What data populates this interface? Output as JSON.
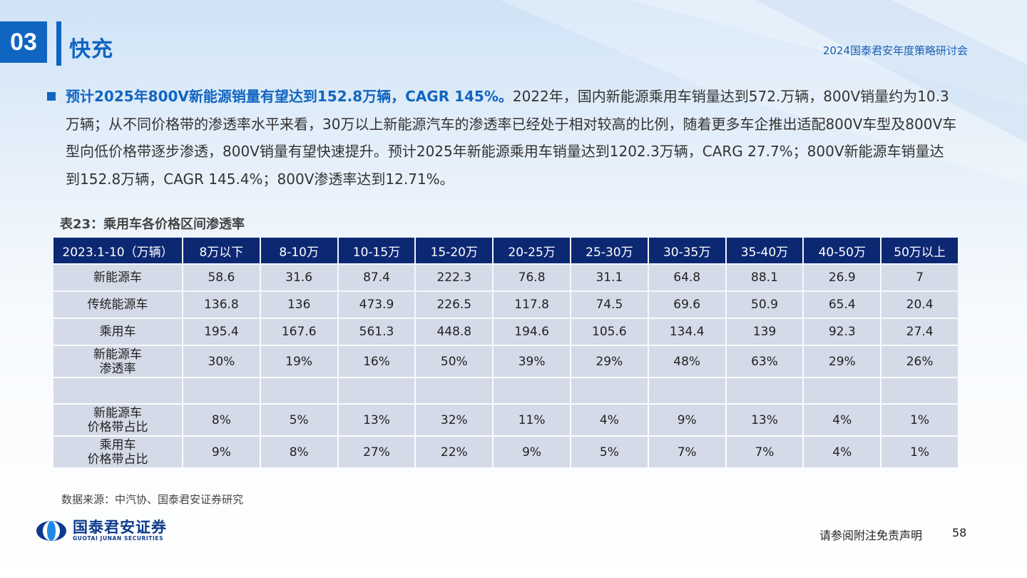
{
  "header": {
    "section_number": "03",
    "section_title": "快充",
    "event": "2024国泰君安年度策略研讨会"
  },
  "summary": {
    "highlight": "预计2025年800V新能源销量有望达到152.8万辆，CAGR 145%。",
    "body": "2022年，国内新能源乘用车销量达到572.万辆，800V销量约为10.3万辆；从不同价格带的渗透率水平来看，30万以上新能源汽车的渗透率已经处于相对较高的比例，随着更多车企推出适配800V车型及800V车型向低价格带逐步渗透，800V销量有望快速提升。预计2025年新能源乘用车销量达到1202.3万辆，CARG 27.7%；800V新能源车销量达到152.8万辆，CAGR 145.4%；800V渗透率达到12.71%。"
  },
  "table": {
    "caption": "表23：乘用车各价格区间渗透率",
    "headers": [
      "2023.1-10（万辆）",
      "8万以下",
      "8-10万",
      "10-15万",
      "15-20万",
      "20-25万",
      "25-30万",
      "30-35万",
      "35-40万",
      "40-50万",
      "50万以上"
    ],
    "rows": [
      {
        "label": "新能源车",
        "values": [
          "58.6",
          "31.6",
          "87.4",
          "222.3",
          "76.8",
          "31.1",
          "64.8",
          "88.1",
          "26.9",
          "7"
        ]
      },
      {
        "label": "传统能源车",
        "values": [
          "136.8",
          "136",
          "473.9",
          "226.5",
          "117.8",
          "74.5",
          "69.6",
          "50.9",
          "65.4",
          "20.4"
        ]
      },
      {
        "label": "乘用车",
        "values": [
          "195.4",
          "167.6",
          "561.3",
          "448.8",
          "194.6",
          "105.6",
          "134.4",
          "139",
          "92.3",
          "27.4"
        ]
      },
      {
        "label": "新能源车\n渗透率",
        "values": [
          "30%",
          "19%",
          "16%",
          "50%",
          "39%",
          "29%",
          "48%",
          "63%",
          "29%",
          "26%"
        ]
      },
      {
        "label": "",
        "values": [
          "",
          "",
          "",
          "",
          "",
          "",
          "",
          "",
          "",
          ""
        ]
      },
      {
        "label": "新能源车\n价格带占比",
        "values": [
          "8%",
          "5%",
          "13%",
          "32%",
          "11%",
          "4%",
          "9%",
          "13%",
          "4%",
          "1%"
        ]
      },
      {
        "label": "乘用车\n价格带占比",
        "values": [
          "9%",
          "8%",
          "27%",
          "22%",
          "9%",
          "5%",
          "7%",
          "7%",
          "4%",
          "1%"
        ]
      }
    ],
    "source": "数据来源：中汽协、国泰君安证券研究"
  },
  "footer": {
    "logo_cn": "国泰君安证券",
    "logo_en": "GUOTAI JUNAN SECURITIES",
    "disclaimer": "请参阅附注免责声明",
    "page": "58"
  },
  "colors": {
    "brand_blue": "#1065c0",
    "table_header": "#0d2873",
    "table_cell": "#d5dae8"
  }
}
